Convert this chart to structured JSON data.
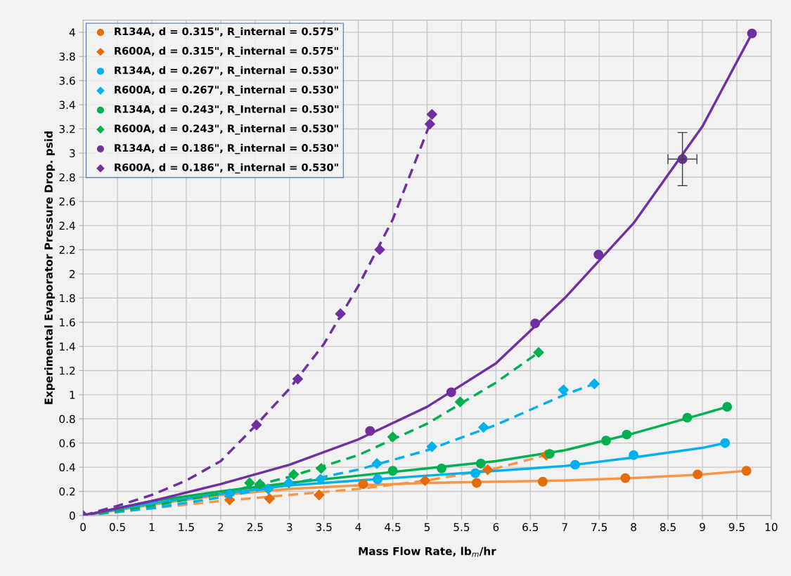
{
  "chart_data": {
    "type": "scatter",
    "xlabel": "Mass Flow Rate, lb$_{m}$/hr",
    "ylabel": "Experimental Evaporator Pressure Drop. psid",
    "xlim": [
      0,
      10
    ],
    "xticks": [
      0,
      0.5,
      1,
      1.5,
      2,
      2.5,
      3,
      3.5,
      4,
      4.5,
      5,
      5.5,
      6,
      6.5,
      7,
      7.5,
      8,
      8.5,
      9,
      9.5,
      10
    ],
    "ylim": [
      0,
      4.1
    ],
    "yticks": [
      0,
      0.2,
      0.4,
      0.6,
      0.8,
      1,
      1.2,
      1.4,
      1.6,
      1.8,
      2,
      2.2,
      2.4,
      2.6,
      2.8,
      3,
      3.2,
      3.4,
      3.6,
      3.8,
      4
    ],
    "grid": true,
    "legend": "top left",
    "series": [
      {
        "type": "line",
        "color": "#f79646",
        "line_style": "solid",
        "marker": "none",
        "x": [
          0,
          1,
          2,
          3,
          4,
          5,
          6,
          7,
          8,
          9,
          9.64
        ],
        "values": [
          0,
          0.09,
          0.17,
          0.22,
          0.25,
          0.27,
          0.28,
          0.29,
          0.31,
          0.34,
          0.37
        ]
      },
      {
        "type": "line",
        "color": "#f79646",
        "line_style": "dashed",
        "marker": "none",
        "x": [
          0,
          1,
          2,
          3,
          4,
          5,
          6,
          6.73
        ],
        "values": [
          0,
          0.06,
          0.12,
          0.17,
          0.22,
          0.29,
          0.39,
          0.5
        ]
      },
      {
        "type": "line",
        "color": "#00b0f0",
        "line_style": "solid",
        "marker": "none",
        "x": [
          0,
          1,
          2,
          3,
          4,
          5,
          6,
          7,
          8,
          9,
          9.33
        ],
        "values": [
          0,
          0.1,
          0.18,
          0.25,
          0.29,
          0.33,
          0.37,
          0.41,
          0.48,
          0.56,
          0.6
        ]
      },
      {
        "type": "line",
        "color": "#00b0f0",
        "line_style": "dashed",
        "marker": "none",
        "x": [
          0,
          1,
          2,
          3,
          4,
          5,
          6,
          7,
          7.43
        ],
        "values": [
          0,
          0.06,
          0.15,
          0.26,
          0.38,
          0.54,
          0.75,
          1.0,
          1.09
        ]
      },
      {
        "type": "line",
        "color": "#00b050",
        "line_style": "solid",
        "marker": "none",
        "x": [
          0,
          1,
          2,
          3,
          4,
          5,
          6,
          7,
          8,
          9,
          9.36
        ],
        "values": [
          0,
          0.12,
          0.2,
          0.27,
          0.33,
          0.39,
          0.45,
          0.54,
          0.68,
          0.84,
          0.9
        ]
      },
      {
        "type": "line",
        "color": "#00b050",
        "line_style": "dashed",
        "marker": "none",
        "x": [
          0,
          1,
          2,
          3,
          4,
          5,
          6,
          6.62
        ],
        "values": [
          0,
          0.08,
          0.18,
          0.32,
          0.5,
          0.76,
          1.1,
          1.35
        ]
      },
      {
        "type": "line",
        "color": "#7030a0",
        "line_style": "solid",
        "marker": "none",
        "x": [
          0,
          1,
          2,
          3,
          4,
          5,
          6,
          7,
          8,
          9,
          9.72
        ],
        "values": [
          0,
          0.12,
          0.26,
          0.42,
          0.63,
          0.9,
          1.26,
          1.8,
          2.42,
          3.22,
          3.99
        ]
      },
      {
        "type": "line",
        "color": "#7030a0",
        "line_style": "dashed",
        "marker": "none",
        "x": [
          0,
          0.5,
          1,
          1.5,
          2,
          2.5,
          3,
          3.5,
          4,
          4.5,
          5.04
        ],
        "values": [
          0,
          0.08,
          0.17,
          0.29,
          0.45,
          0.74,
          1.05,
          1.42,
          1.9,
          2.45,
          3.24
        ]
      },
      {
        "name": "R134A, d = 0.315\", R_internal = 0.575\"",
        "color": "#e46c0a",
        "marker": "circle",
        "x": [
          4.07,
          5.72,
          6.68,
          7.88,
          8.93,
          9.64
        ],
        "values": [
          0.26,
          0.27,
          0.28,
          0.31,
          0.34,
          0.37
        ]
      },
      {
        "name": "R600A, d = 0.315\", R_internal = 0.575\"",
        "color": "#e46c0a",
        "marker": "diamond",
        "x": [
          2.13,
          2.71,
          3.43,
          4.97,
          5.88,
          6.73
        ],
        "values": [
          0.13,
          0.14,
          0.17,
          0.29,
          0.38,
          0.5
        ]
      },
      {
        "name": "R134A, d = 0.267\", R_internal = 0.530\"",
        "color": "#00b0f0",
        "marker": "circle",
        "x": [
          4.28,
          5.7,
          7.15,
          8.0,
          9.33
        ],
        "values": [
          0.3,
          0.35,
          0.42,
          0.5,
          0.6
        ]
      },
      {
        "name": "R600A, d = 0.267\", R_internal = 0.530\"",
        "color": "#00b0f0",
        "marker": "diamond",
        "x": [
          2.13,
          2.69,
          2.99,
          3.45,
          4.27,
          5.07,
          5.82,
          6.98,
          7.43
        ],
        "values": [
          0.18,
          0.22,
          0.27,
          0.3,
          0.43,
          0.57,
          0.73,
          1.04,
          1.09
        ]
      },
      {
        "name": "R134A, d = 0.243\", R_Internal = 0.530\"",
        "color": "#00b050",
        "marker": "circle",
        "x": [
          4.5,
          5.21,
          5.78,
          6.78,
          7.6,
          7.9,
          8.78,
          9.36
        ],
        "values": [
          0.37,
          0.39,
          0.43,
          0.51,
          0.62,
          0.67,
          0.81,
          0.9
        ]
      },
      {
        "name": "R600A, d = 0.243\", R_internal = 0.530\"",
        "color": "#00b050",
        "marker": "diamond",
        "x": [
          2.42,
          2.57,
          3.06,
          3.46,
          4.5,
          5.48,
          6.62
        ],
        "values": [
          0.27,
          0.26,
          0.34,
          0.39,
          0.65,
          0.94,
          1.35
        ]
      },
      {
        "name": "R134A, d = 0.186\", R_internal = 0.530\"",
        "color": "#7030a0",
        "marker": "circle",
        "x": [
          4.17,
          5.35,
          6.57,
          7.49,
          8.71,
          9.72
        ],
        "values": [
          0.7,
          1.02,
          1.59,
          2.16,
          2.95,
          3.99
        ],
        "errors": [
          null,
          null,
          null,
          null,
          0.22,
          null
        ],
        "xerrors": [
          null,
          null,
          null,
          null,
          0.21,
          null
        ]
      },
      {
        "name": "R600A, d = 0.186\", R_internal = 0.530\"",
        "color": "#7030a0",
        "marker": "diamond",
        "x": [
          0,
          2.52,
          3.12,
          3.74,
          4.31,
          5.04,
          5.07
        ],
        "values": [
          0,
          0.75,
          1.13,
          1.67,
          2.2,
          3.24,
          3.32
        ]
      }
    ]
  }
}
